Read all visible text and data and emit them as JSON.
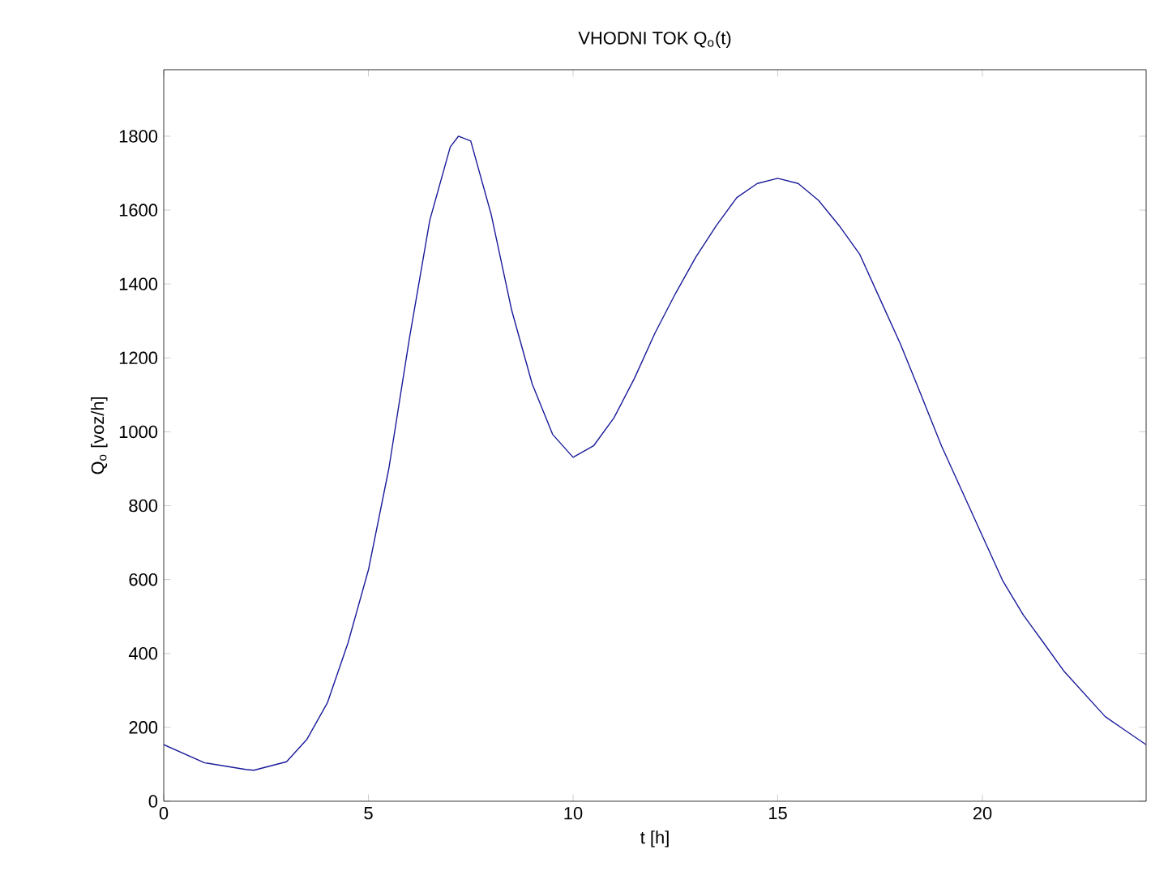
{
  "chart_data": {
    "type": "line",
    "title": "VHODNI TOK Q$_{o}$(t)",
    "xlabel": "t [h]",
    "ylabel": "Q$_{o}$ [voz/h]",
    "x": [
      0,
      1,
      2,
      2.2,
      3,
      3.5,
      4,
      4.5,
      5,
      5.5,
      6,
      6.5,
      7,
      7.2,
      7.5,
      8,
      8.5,
      9,
      9.5,
      10,
      10.5,
      11,
      11.5,
      12,
      12.5,
      13,
      13.5,
      14,
      14.5,
      15,
      15.5,
      16,
      16.5,
      17,
      17.5,
      18,
      18.5,
      19,
      19.5,
      20,
      20.5,
      21,
      21.5,
      22,
      22.5,
      23,
      23.5,
      24
    ],
    "series": [
      {
        "color": "#1a1a9a",
        "values": [
          153,
          104,
          86,
          84,
          107,
          168,
          267,
          428,
          626,
          901,
          1252,
          1573,
          1771,
          1800,
          1787,
          1588,
          1329,
          1130,
          993,
          931,
          962,
          1038,
          1145,
          1267,
          1374,
          1473,
          1558,
          1634,
          1672,
          1686,
          1672,
          1626,
          1558,
          1481,
          1359,
          1237,
          1100,
          962,
          840,
          718,
          596,
          504,
          428,
          351,
          290,
          229,
          191,
          153
        ]
      }
    ],
    "xlim": [
      0,
      24
    ],
    "ylim": [
      0,
      1980
    ],
    "xticks": [
      0,
      5,
      10,
      15,
      20
    ],
    "yticks": [
      0,
      200,
      400,
      600,
      800,
      1000,
      1200,
      1400,
      1600,
      1800
    ],
    "marker": "none",
    "line_style": "solid"
  }
}
